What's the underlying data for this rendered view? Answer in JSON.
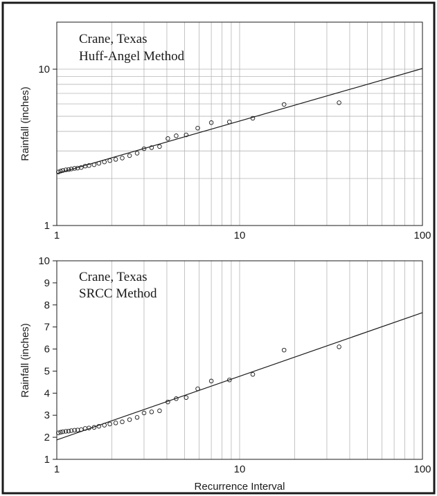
{
  "chart_data": [
    {
      "type": "scatter",
      "annotations": [
        "Crane, Texas",
        "Huff-Angel Method"
      ],
      "xlabel": "",
      "ylabel": "Rainfall (inches)",
      "x_scale": "log",
      "y_scale": "log",
      "xlim": [
        1,
        100
      ],
      "ylim": [
        1,
        20
      ],
      "x_tick_labels": [
        "1",
        "10",
        "100"
      ],
      "y_tick_values": [
        1,
        10
      ],
      "y_tick_labels": [
        "1",
        "10"
      ],
      "grid": true,
      "series": [
        {
          "type": "scatter",
          "x": [
            1.02,
            1.05,
            1.08,
            1.12,
            1.16,
            1.2,
            1.25,
            1.3,
            1.36,
            1.43,
            1.5,
            1.6,
            1.7,
            1.82,
            1.95,
            2.1,
            2.28,
            2.5,
            2.75,
            3.0,
            3.3,
            3.65,
            4.05,
            4.5,
            5.1,
            5.9,
            7.0,
            8.8,
            11.8,
            17.5,
            35.0
          ],
          "y": [
            2.2,
            2.23,
            2.25,
            2.27,
            2.28,
            2.3,
            2.32,
            2.33,
            2.35,
            2.4,
            2.42,
            2.45,
            2.5,
            2.55,
            2.6,
            2.65,
            2.7,
            2.8,
            2.9,
            3.1,
            3.15,
            3.2,
            3.6,
            3.75,
            3.8,
            4.2,
            4.55,
            4.6,
            4.85,
            5.95,
            6.1
          ]
        },
        {
          "type": "line",
          "x": [
            1,
            100
          ],
          "y": [
            2.15,
            10.1
          ]
        }
      ]
    },
    {
      "type": "scatter",
      "annotations": [
        "Crane, Texas",
        "SRCC Method"
      ],
      "xlabel": "Recurrence Interval",
      "ylabel": "Rainfall (inches)",
      "x_scale": "log",
      "y_scale": "linear",
      "xlim": [
        1,
        100
      ],
      "ylim": [
        1,
        10
      ],
      "x_tick_labels": [
        "1",
        "10",
        "100"
      ],
      "y_tick_values": [
        1,
        2,
        3,
        4,
        5,
        6,
        7,
        8,
        9,
        10
      ],
      "y_tick_labels": [
        "1",
        "2",
        "3",
        "4",
        "5",
        "6",
        "7",
        "8",
        "9",
        "10"
      ],
      "grid": true,
      "series": [
        {
          "type": "scatter",
          "x": [
            1.02,
            1.05,
            1.08,
            1.12,
            1.16,
            1.2,
            1.25,
            1.3,
            1.36,
            1.43,
            1.5,
            1.6,
            1.7,
            1.82,
            1.95,
            2.1,
            2.28,
            2.5,
            2.75,
            3.0,
            3.3,
            3.65,
            4.05,
            4.5,
            5.1,
            5.9,
            7.0,
            8.8,
            11.8,
            17.5,
            35.0
          ],
          "y": [
            2.2,
            2.23,
            2.25,
            2.27,
            2.28,
            2.3,
            2.32,
            2.33,
            2.35,
            2.4,
            2.42,
            2.45,
            2.5,
            2.55,
            2.6,
            2.65,
            2.7,
            2.8,
            2.9,
            3.1,
            3.15,
            3.2,
            3.6,
            3.75,
            3.8,
            4.2,
            4.55,
            4.6,
            4.85,
            5.95,
            6.1
          ]
        },
        {
          "type": "line",
          "x": [
            1,
            100
          ],
          "y": [
            1.88,
            7.65
          ]
        }
      ]
    }
  ]
}
